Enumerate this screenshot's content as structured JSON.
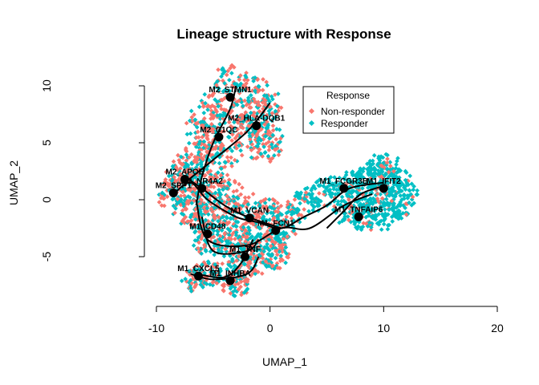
{
  "chart_data": {
    "type": "scatter",
    "title": "Lineage structure with Response",
    "xlabel": "UMAP_1",
    "ylabel": "UMAP_2",
    "xlim": [
      -10,
      20
    ],
    "ylim": [
      -9,
      11
    ],
    "xticks": [
      "-10",
      "0",
      "10",
      "20"
    ],
    "yticks": [
      "-5",
      "0",
      "5",
      "10"
    ],
    "legend": {
      "title": "Response",
      "position": "top-right",
      "entries": [
        {
          "label": "Non-responder",
          "color": "#F8766D"
        },
        {
          "label": "Responder",
          "color": "#00BFC4"
        }
      ]
    },
    "clusters": [
      {
        "points": [
          [
            -3.5,
            10.5
          ],
          [
            -1.5,
            9.5
          ],
          [
            -0.5,
            8.5
          ],
          [
            -4.5,
            8.5
          ],
          [
            -5.5,
            7.5
          ],
          [
            -3,
            7
          ],
          [
            -1,
            7.5
          ],
          [
            -6,
            6
          ],
          [
            -5,
            5
          ],
          [
            -2,
            6
          ],
          [
            -0.5,
            5.5
          ],
          [
            -0.5,
            4.5
          ],
          [
            -6.5,
            4
          ],
          [
            -4,
            4
          ],
          [
            -7,
            3
          ],
          [
            -8,
            2
          ],
          [
            -6,
            2
          ],
          [
            -7.5,
            1
          ],
          [
            -8.5,
            0.5
          ],
          [
            -5,
            0.5
          ],
          [
            -4,
            1
          ],
          [
            -6,
            -0.5
          ],
          [
            -7,
            -1
          ],
          [
            -5.5,
            -2
          ]
        ],
        "r": 1.6
      },
      {
        "points": [
          [
            -4,
            -1
          ],
          [
            -2,
            -0.5
          ],
          [
            0,
            -1
          ],
          [
            1.5,
            -1.5
          ],
          [
            -1,
            -2.5
          ],
          [
            1,
            -3
          ],
          [
            -3,
            -3
          ],
          [
            -5,
            -2.5
          ],
          [
            -5.5,
            -4
          ],
          [
            -3.5,
            -4
          ],
          [
            -1.5,
            -4
          ],
          [
            0,
            -4
          ],
          [
            -1,
            -5.5
          ],
          [
            -2.5,
            -6
          ],
          [
            -4,
            -6.5
          ],
          [
            -5.5,
            -6.5
          ],
          [
            -6.5,
            -7
          ],
          [
            -3,
            -7.5
          ],
          [
            0.5,
            -5
          ]
        ],
        "r": 1.3
      },
      {
        "points": [
          [
            3,
            -0.5
          ],
          [
            4.5,
            0.5
          ],
          [
            6,
            1
          ],
          [
            7.5,
            1.5
          ],
          [
            9,
            2
          ],
          [
            10,
            2
          ],
          [
            11,
            1.5
          ],
          [
            11.5,
            0.5
          ],
          [
            11,
            -0.5
          ],
          [
            10,
            -1.5
          ],
          [
            8.5,
            -1.5
          ],
          [
            7,
            -1
          ],
          [
            8,
            0
          ],
          [
            9.5,
            0.5
          ],
          [
            10,
            3
          ]
        ],
        "r": 1.5
      }
    ],
    "curves": [
      [
        [
          -6.5,
          -0.5
        ],
        [
          -6,
          2
        ],
        [
          -5,
          5
        ],
        [
          -3.5,
          8
        ],
        [
          -3,
          10
        ]
      ],
      [
        [
          -7.5,
          1.5
        ],
        [
          -5,
          3.5
        ],
        [
          -2,
          6
        ],
        [
          0,
          8.5
        ]
      ],
      [
        [
          -7.5,
          2
        ],
        [
          -6,
          1
        ],
        [
          -4,
          -0.5
        ],
        [
          -2,
          -1.5
        ],
        [
          1,
          -2.5
        ]
      ],
      [
        [
          -8.5,
          0.5
        ],
        [
          -7,
          1.5
        ],
        [
          -5.5,
          0
        ],
        [
          -3,
          -1.5
        ],
        [
          -1,
          -2
        ],
        [
          1,
          -2.5
        ],
        [
          3,
          -1.5
        ],
        [
          5,
          -0.5
        ],
        [
          7,
          1
        ],
        [
          10,
          1.5
        ]
      ],
      [
        [
          -6.5,
          0
        ],
        [
          -5.5,
          -3.5
        ],
        [
          -2,
          -4
        ],
        [
          1,
          -2.5
        ],
        [
          3.5,
          -2.5
        ],
        [
          6.5,
          -0.5
        ],
        [
          9,
          0.5
        ]
      ],
      [
        [
          -6,
          -1.5
        ],
        [
          -5,
          -4.5
        ],
        [
          -2,
          -4.5
        ],
        [
          -1,
          -3.5
        ]
      ],
      [
        [
          -7,
          -6.5
        ],
        [
          -5,
          -7
        ],
        [
          -2,
          -6.5
        ],
        [
          -1,
          -5
        ]
      ],
      [
        [
          -6.5,
          -6.5
        ],
        [
          -4,
          -6.8
        ],
        [
          -2.5,
          -5.5
        ],
        [
          -1.5,
          -3.5
        ]
      ],
      [
        [
          5,
          -2.5
        ],
        [
          6.5,
          -1
        ],
        [
          8,
          0.5
        ],
        [
          10,
          1.2
        ]
      ]
    ],
    "nodes": [
      {
        "label": "M2_STMN1",
        "x": -3.5,
        "y": 9.0
      },
      {
        "label": "M2_HLA-DQB1",
        "x": -1.2,
        "y": 6.5
      },
      {
        "label": "M2_C1QC",
        "x": -4.5,
        "y": 5.5
      },
      {
        "label": "M2_APOE",
        "x": -7.5,
        "y": 1.8
      },
      {
        "label": "M2_NR4A2",
        "x": -6.0,
        "y": 1.0
      },
      {
        "label": "M2_SPP1",
        "x": -8.5,
        "y": 0.6
      },
      {
        "label": "M1_IFIT2",
        "x": 10.0,
        "y": 1.0
      },
      {
        "label": "M1_FCGR3B",
        "x": 6.5,
        "y": 1.0
      },
      {
        "label": "M1_TNFAIP6",
        "x": 7.8,
        "y": -1.5
      },
      {
        "label": "M1_VCAN",
        "x": -1.8,
        "y": -1.6
      },
      {
        "label": "M1_FCN1",
        "x": 0.5,
        "y": -2.7
      },
      {
        "label": "M1_CD48",
        "x": -5.5,
        "y": -3.0
      },
      {
        "label": "M1_TNF",
        "x": -2.2,
        "y": -5.0
      },
      {
        "label": "M1_CXCL5",
        "x": -6.3,
        "y": -6.7
      },
      {
        "label": "M1_INHBA",
        "x": -3.5,
        "y": -7.1
      }
    ]
  }
}
